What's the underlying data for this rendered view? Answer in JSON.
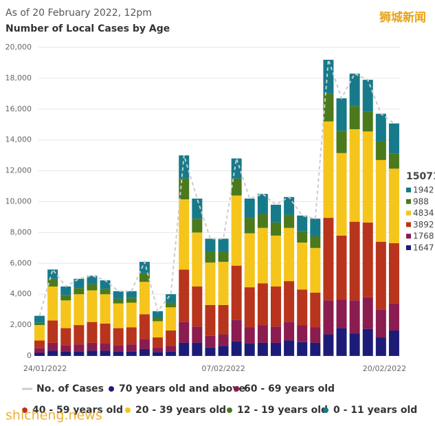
{
  "chart_data": {
    "type": "stacked-bar",
    "subtitle": "As of 20 February 2022, 12pm",
    "title": "Number of Local Cases by Age",
    "watermark_top": "狮城新闻",
    "watermark_bottom": "shicheng.news",
    "categories": [
      "24/01/2022",
      null,
      null,
      null,
      null,
      null,
      null,
      null,
      null,
      null,
      null,
      null,
      null,
      null,
      "07/02/2022",
      null,
      null,
      null,
      null,
      null,
      null,
      null,
      null,
      null,
      null,
      null,
      null,
      "20/02/2022"
    ],
    "ylim": [
      0,
      20000
    ],
    "yticks": [
      0,
      {
        "value": 2000,
        "label": "2,000"
      },
      {
        "value": 4000,
        "label": "4,000"
      },
      {
        "value": 6000,
        "label": "6,000"
      },
      {
        "value": 8000,
        "label": "8,000"
      },
      {
        "value": 10000,
        "label": "10,000"
      },
      {
        "value": 12000,
        "label": "12,000"
      },
      {
        "value": 14000,
        "label": "14,000"
      },
      {
        "value": 16000,
        "label": "16,000"
      },
      {
        "value": 18000,
        "label": "18,000"
      },
      {
        "value": 20000,
        "label": "20,000"
      }
    ],
    "grid": true,
    "total_series": {
      "name": "No. of Cases",
      "color": "#cccccc",
      "values": [
        2600,
        5600,
        4500,
        5000,
        5200,
        4900,
        4200,
        4200,
        6100,
        2900,
        4000,
        13000,
        10200,
        7600,
        7600,
        12800,
        10200,
        10500,
        9800,
        10300,
        9100,
        8900,
        19200,
        16700,
        18300,
        17900,
        15700,
        15071
      ]
    },
    "series": [
      {
        "name": "70 years old and above",
        "color": "#1c1c78",
        "values": [
          200,
          350,
          300,
          300,
          350,
          350,
          300,
          300,
          450,
          250,
          300,
          850,
          850,
          550,
          650,
          950,
          800,
          850,
          850,
          1000,
          900,
          850,
          1400,
          1800,
          1450,
          1750,
          1200,
          1647
        ]
      },
      {
        "name": "60 - 69 years old",
        "color": "#8a1c50",
        "values": [
          300,
          500,
          400,
          450,
          500,
          450,
          400,
          450,
          650,
          300,
          350,
          1350,
          1050,
          750,
          750,
          1400,
          1050,
          1150,
          1050,
          1200,
          1100,
          1000,
          2200,
          1850,
          2150,
          2050,
          1800,
          1768
        ]
      },
      {
        "name": "40 - 59 years old",
        "color": "#b8341c",
        "values": [
          500,
          1450,
          1100,
          1250,
          1350,
          1300,
          1100,
          1100,
          1600,
          650,
          1000,
          3400,
          2600,
          2000,
          1900,
          3500,
          2600,
          2700,
          2600,
          2650,
          2300,
          2250,
          5350,
          4150,
          5100,
          4850,
          4400,
          3892
        ]
      },
      {
        "name": "20 - 39 years old",
        "color": "#f5c51c",
        "values": [
          1000,
          2200,
          1800,
          2000,
          2050,
          1900,
          1600,
          1600,
          2100,
          1050,
          1500,
          4550,
          3500,
          2750,
          2800,
          4550,
          3500,
          3600,
          3300,
          3450,
          3050,
          2900,
          6250,
          5350,
          6000,
          5900,
          5300,
          4834
        ]
      },
      {
        "name": "12 - 19 years old",
        "color": "#4a7a1c",
        "values": [
          150,
          500,
          350,
          400,
          400,
          350,
          300,
          300,
          550,
          200,
          300,
          1350,
          900,
          700,
          650,
          1100,
          1000,
          900,
          850,
          850,
          750,
          750,
          1800,
          1450,
          1500,
          1300,
          1200,
          988
        ]
      },
      {
        "name": "0 - 11 years old",
        "color": "#177a8a",
        "values": [
          450,
          600,
          550,
          600,
          550,
          550,
          500,
          450,
          750,
          450,
          550,
          1500,
          1300,
          850,
          850,
          1300,
          1250,
          1300,
          1150,
          1150,
          1000,
          1150,
          2200,
          2100,
          2100,
          2050,
          1800,
          1942
        ]
      }
    ]
  }
}
